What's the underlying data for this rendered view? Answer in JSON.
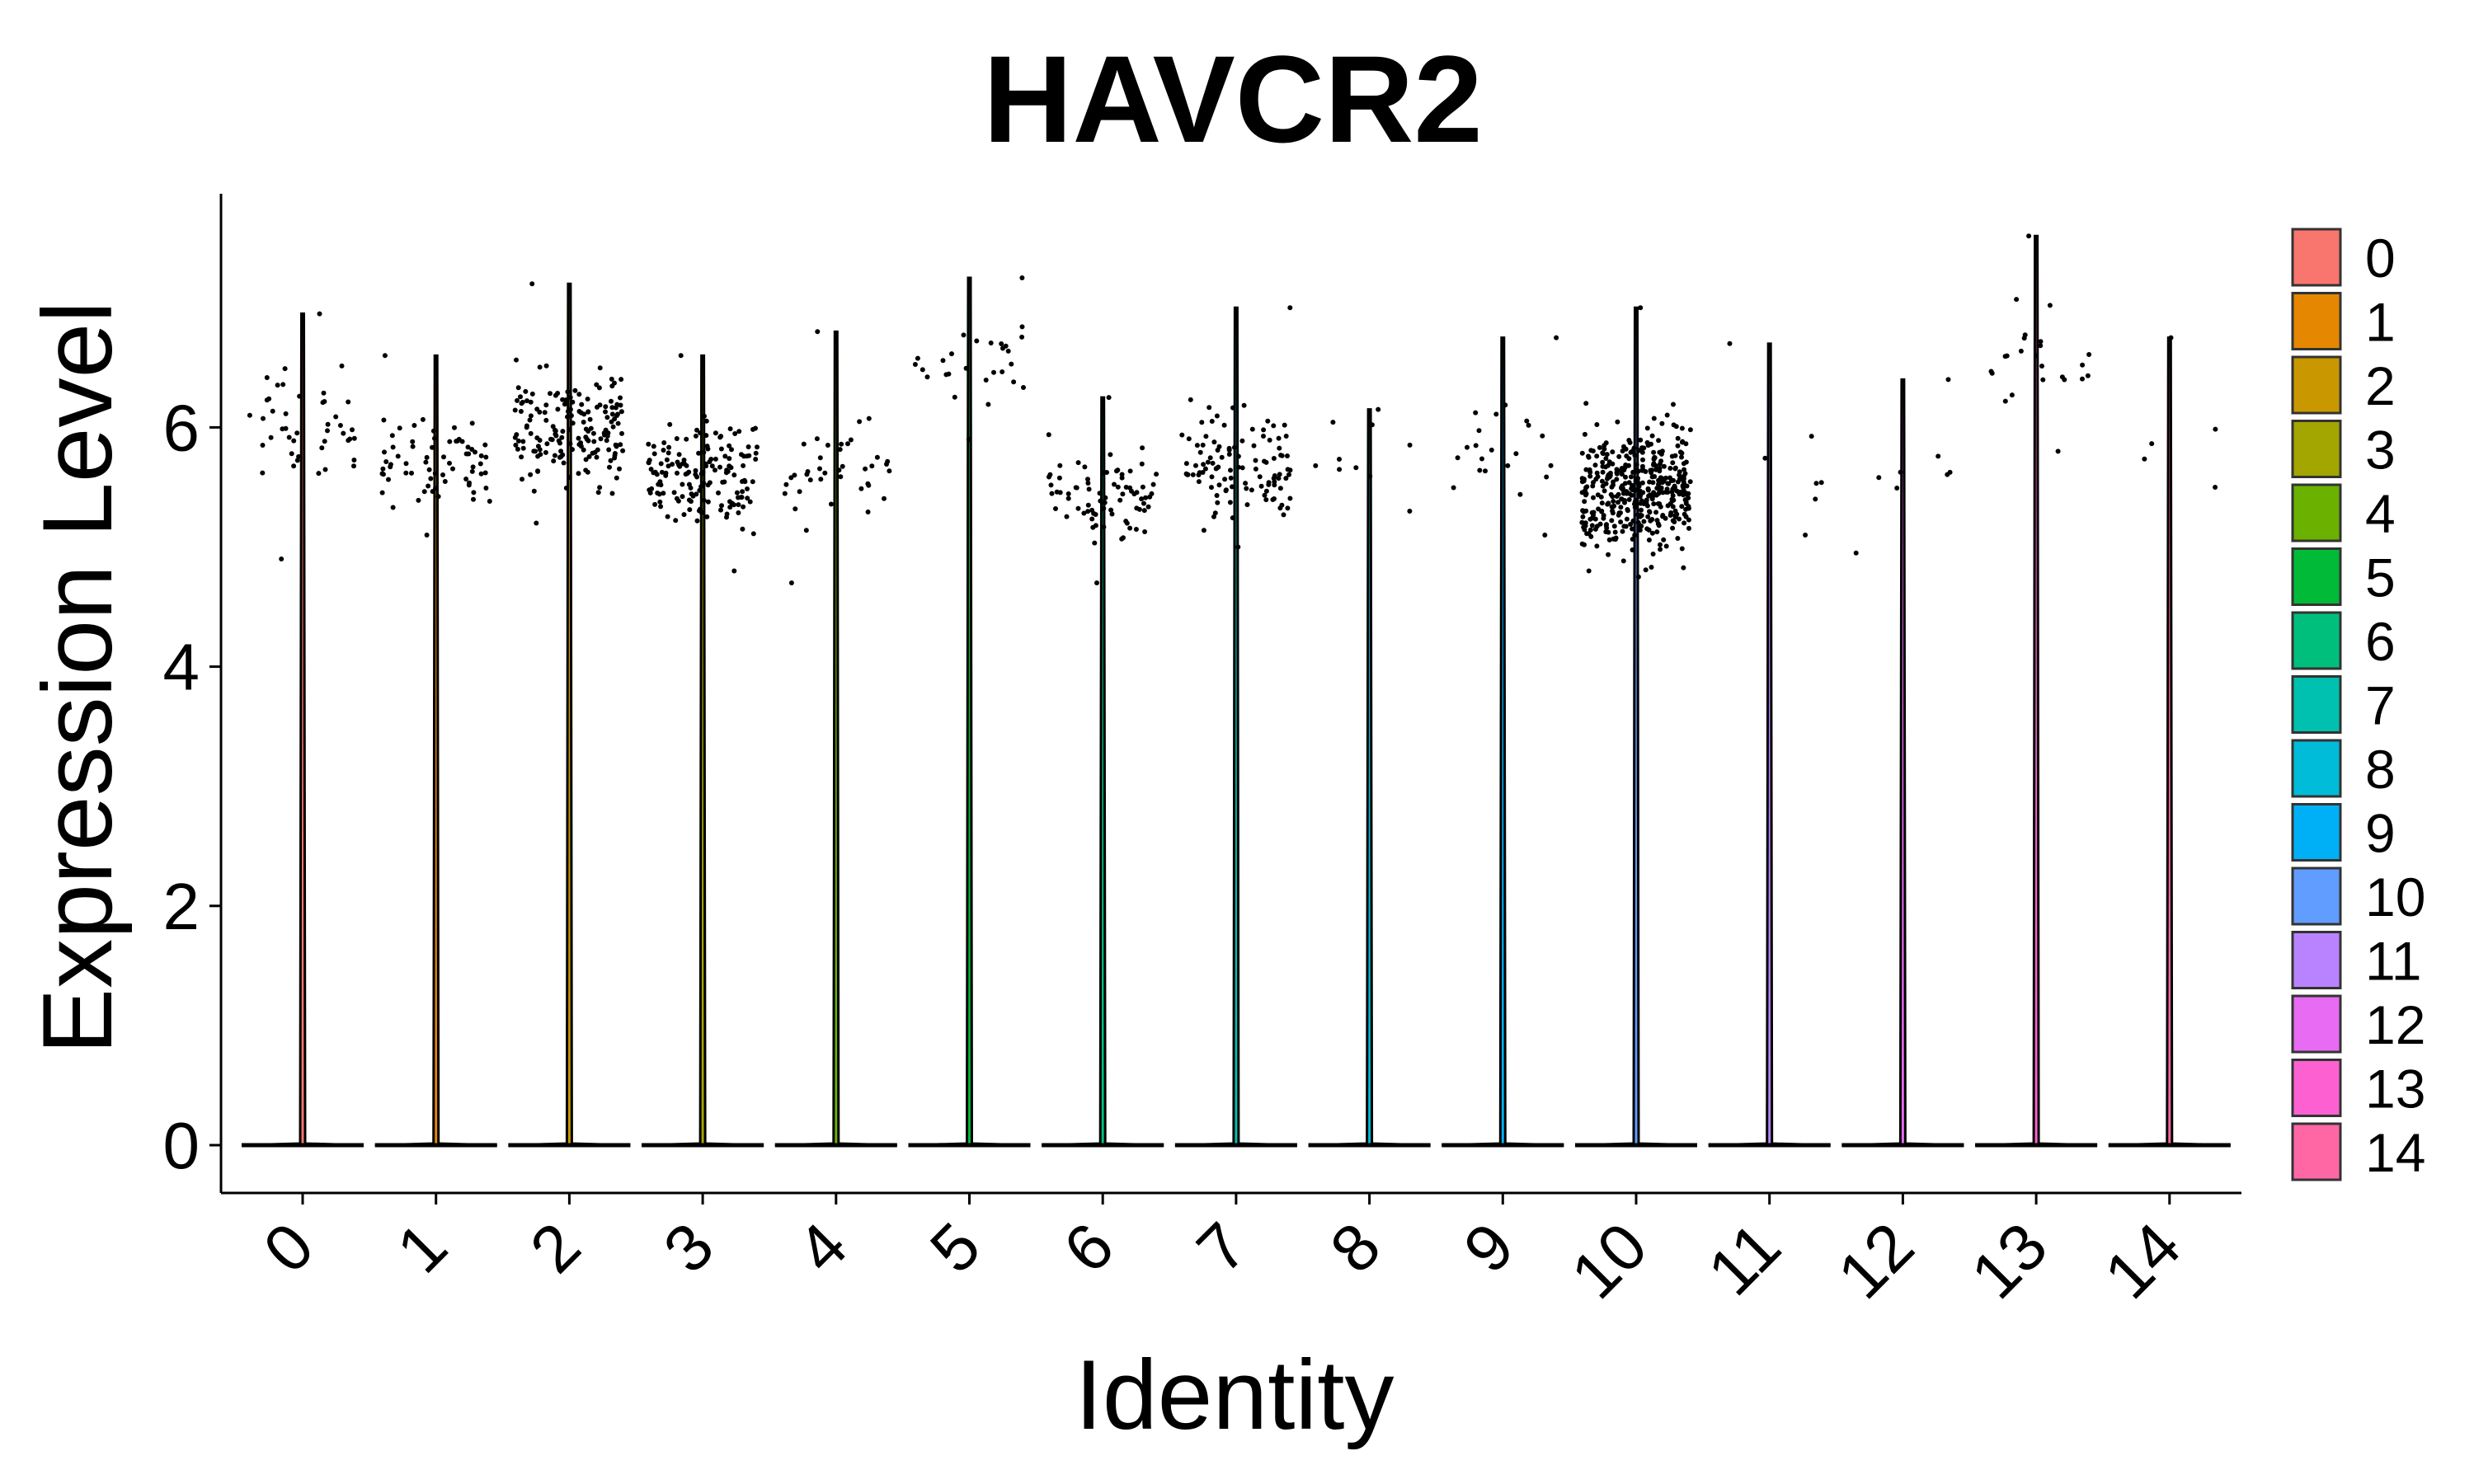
{
  "chart_data": {
    "type": "violin",
    "title": "HAVCR2",
    "xlabel": "Identity",
    "ylabel": "Expression Level",
    "ylim": [
      -0.4,
      7.9
    ],
    "yticks": [
      0,
      2,
      4,
      6
    ],
    "ytick_labels": [
      "0",
      "2",
      "4",
      "6"
    ],
    "categories": [
      "0",
      "1",
      "2",
      "3",
      "4",
      "5",
      "6",
      "7",
      "8",
      "9",
      "10",
      "11",
      "12",
      "13",
      "14"
    ],
    "x_tick_rotation_deg": 45,
    "baseline_value": 0,
    "max_values": [
      6.95,
      6.6,
      7.2,
      6.6,
      6.8,
      7.25,
      6.25,
      7.0,
      6.15,
      6.75,
      7.0,
      6.7,
      6.4,
      7.6,
      6.75
    ],
    "point_summary": [
      {
        "cluster": "0",
        "count": 45,
        "ymin": 4.9,
        "ymax": 6.95,
        "center": 6.0
      },
      {
        "cluster": "1",
        "count": 70,
        "ymin": 5.1,
        "ymax": 6.6,
        "center": 5.7
      },
      {
        "cluster": "2",
        "count": 170,
        "ymin": 5.2,
        "ymax": 7.2,
        "center": 6.0
      },
      {
        "cluster": "3",
        "count": 160,
        "ymin": 4.8,
        "ymax": 6.6,
        "center": 5.6
      },
      {
        "cluster": "4",
        "count": 40,
        "ymin": 4.7,
        "ymax": 6.8,
        "center": 5.6
      },
      {
        "cluster": "5",
        "count": 28,
        "ymin": 5.9,
        "ymax": 7.25,
        "center": 6.5
      },
      {
        "cluster": "6",
        "count": 80,
        "ymin": 4.7,
        "ymax": 6.25,
        "center": 5.4
      },
      {
        "cluster": "7",
        "count": 110,
        "ymin": 5.0,
        "ymax": 7.0,
        "center": 5.7
      },
      {
        "cluster": "8",
        "count": 10,
        "ymin": 5.3,
        "ymax": 6.15,
        "center": 5.7
      },
      {
        "cluster": "9",
        "count": 22,
        "ymin": 5.1,
        "ymax": 6.75,
        "center": 5.8
      },
      {
        "cluster": "10",
        "count": 420,
        "ymin": 4.75,
        "ymax": 7.0,
        "center": 5.5
      },
      {
        "cluster": "11",
        "count": 7,
        "ymin": 5.1,
        "ymax": 6.7,
        "center": 5.7
      },
      {
        "cluster": "12",
        "count": 8,
        "ymin": 4.95,
        "ymax": 6.4,
        "center": 5.5
      },
      {
        "cluster": "13",
        "count": 24,
        "ymin": 5.8,
        "ymax": 7.6,
        "center": 6.5
      },
      {
        "cluster": "14",
        "count": 5,
        "ymin": 5.5,
        "ymax": 6.75,
        "center": 5.9
      }
    ],
    "legend": {
      "placement": "right",
      "entries": [
        "0",
        "1",
        "2",
        "3",
        "4",
        "5",
        "6",
        "7",
        "8",
        "9",
        "10",
        "11",
        "12",
        "13",
        "14"
      ],
      "colors": [
        "#F8766D",
        "#E58700",
        "#C99800",
        "#A3A500",
        "#6BB100",
        "#00BA38",
        "#00BF7D",
        "#00C0AF",
        "#00BCD8",
        "#00B0F6",
        "#619CFF",
        "#B983FF",
        "#E76BF3",
        "#FD61D1",
        "#FF67A4"
      ]
    },
    "grid": false,
    "point_color": "#000000"
  }
}
